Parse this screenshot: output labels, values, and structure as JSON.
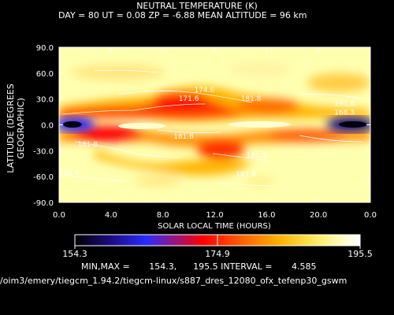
{
  "title": "NEUTRAL TEMPERATURE (K)",
  "subtitle": "DAY =  80   UT =   0.08   ZP =  -6.88   MEAN ALTITUDE =  96 km",
  "colorbar": {
    "min_label": "154.3",
    "mid_label": "174.9",
    "max_label": "195.5"
  },
  "stats_line": "MIN,MAX =       154.3,      195.5 INTERVAL =       4.585",
  "file_path": "/oim3/emery/tiegcm_1.94.2/tiegcm-linux/s887_dres_12080_ofx_tefenp30_gswm",
  "colors": {
    "background": "#000000",
    "colormap": [
      "#000000",
      "#1a0a7a",
      "#2b2bff",
      "#ff0000",
      "#ff6a00",
      "#ffb300",
      "#ffee66",
      "#ffffd0",
      "#ffffff"
    ]
  },
  "chart_data": {
    "type": "heatmap",
    "title": "NEUTRAL TEMPERATURE (K)",
    "xlabel": "SOLAR LOCAL TIME (HOURS)",
    "ylabel": "LATITUDE (DEGREES GEOGRAPHIC)",
    "xlim": [
      0,
      24
    ],
    "ylim": [
      -90,
      90
    ],
    "x_ticks": [
      "0.0",
      "4.0",
      "8.0",
      "12.0",
      "16.0",
      "20.0",
      "0.0"
    ],
    "y_ticks": [
      "90.0",
      "60.0",
      "30.0",
      "0.0",
      "-30.0",
      "-60.0",
      "-90.0"
    ],
    "value_range": [
      154.3,
      195.5
    ],
    "contour_interval": 4.585,
    "contour_labels": [
      {
        "text": "171.6",
        "x": 10.0,
        "y": 28
      },
      {
        "text": "174.6",
        "x": 11.2,
        "y": 38
      },
      {
        "text": "181.8",
        "x": 14.8,
        "y": 28
      },
      {
        "text": "191.8",
        "x": 22.0,
        "y": 22
      },
      {
        "text": "168.3",
        "x": 22.0,
        "y": 12
      },
      {
        "text": "181.8",
        "x": 2.2,
        "y": -25
      },
      {
        "text": "181.8",
        "x": 9.6,
        "y": -16
      },
      {
        "text": "181.8",
        "x": 15.2,
        "y": -38
      },
      {
        "text": "191.6",
        "x": 0.8,
        "y": -58
      },
      {
        "text": "181.8",
        "x": 14.4,
        "y": -60
      }
    ]
  }
}
